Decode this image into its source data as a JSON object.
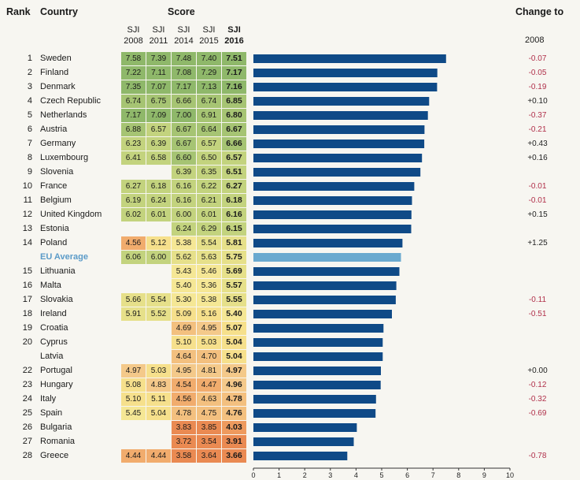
{
  "headers": {
    "rank": "Rank",
    "country": "Country",
    "score": "Score",
    "change": "Change to",
    "change_year": "2008",
    "cols": [
      {
        "l1": "SJI",
        "l2": "2008"
      },
      {
        "l1": "SJI",
        "l2": "2011"
      },
      {
        "l1": "SJI",
        "l2": "2014"
      },
      {
        "l1": "SJI",
        "l2": "2015"
      },
      {
        "l1": "SJI",
        "l2": "2016"
      }
    ]
  },
  "colors": {
    "bar": "#0f4a87",
    "eu_bar": "#6aa9cf",
    "eu_text": "#5b9bc8",
    "negative": "#b0304a"
  },
  "chart_data": {
    "type": "bar",
    "orientation": "horizontal",
    "xlim": [
      0,
      10
    ],
    "xticks": [
      "0",
      "1",
      "2",
      "3",
      "4",
      "5",
      "6",
      "7",
      "8",
      "9",
      "10"
    ],
    "rows": [
      {
        "rank": "1",
        "country": "Sweden",
        "scores": [
          "7.58",
          "7.39",
          "7.48",
          "7.40",
          "7.51"
        ],
        "value": 7.51,
        "change": "-0.07"
      },
      {
        "rank": "2",
        "country": "Finland",
        "scores": [
          "7.22",
          "7.11",
          "7.08",
          "7.29",
          "7.17"
        ],
        "value": 7.17,
        "change": "-0.05"
      },
      {
        "rank": "3",
        "country": "Denmark",
        "scores": [
          "7.35",
          "7.07",
          "7.17",
          "7.13",
          "7.16"
        ],
        "value": 7.16,
        "change": "-0.19"
      },
      {
        "rank": "4",
        "country": "Czech Republic",
        "scores": [
          "6.74",
          "6.75",
          "6.66",
          "6.74",
          "6.85"
        ],
        "value": 6.85,
        "change": "+0.10"
      },
      {
        "rank": "5",
        "country": "Netherlands",
        "scores": [
          "7.17",
          "7.09",
          "7.00",
          "6.91",
          "6.80"
        ],
        "value": 6.8,
        "change": "-0.37"
      },
      {
        "rank": "6",
        "country": "Austria",
        "scores": [
          "6.88",
          "6.57",
          "6.67",
          "6.64",
          "6.67"
        ],
        "value": 6.67,
        "change": "-0.21"
      },
      {
        "rank": "7",
        "country": "Germany",
        "scores": [
          "6.23",
          "6.39",
          "6.67",
          "6.57",
          "6.66"
        ],
        "value": 6.66,
        "change": "+0.43"
      },
      {
        "rank": "8",
        "country": "Luxembourg",
        "scores": [
          "6.41",
          "6.58",
          "6.60",
          "6.50",
          "6.57"
        ],
        "value": 6.57,
        "change": "+0.16"
      },
      {
        "rank": "9",
        "country": "Slovenia",
        "scores": [
          "",
          "",
          "6.39",
          "6.35",
          "6.51"
        ],
        "value": 6.51,
        "change": ""
      },
      {
        "rank": "10",
        "country": "France",
        "scores": [
          "6.27",
          "6.18",
          "6.16",
          "6.22",
          "6.27"
        ],
        "value": 6.27,
        "change": "-0.01"
      },
      {
        "rank": "11",
        "country": "Belgium",
        "scores": [
          "6.19",
          "6.24",
          "6.16",
          "6.21",
          "6.18"
        ],
        "value": 6.18,
        "change": "-0.01"
      },
      {
        "rank": "12",
        "country": "United Kingdom",
        "scores": [
          "6.02",
          "6.01",
          "6.00",
          "6.01",
          "6.16"
        ],
        "value": 6.16,
        "change": "+0.15"
      },
      {
        "rank": "13",
        "country": "Estonia",
        "scores": [
          "",
          "",
          "6.24",
          "6.29",
          "6.15"
        ],
        "value": 6.15,
        "change": ""
      },
      {
        "rank": "14",
        "country": "Poland",
        "scores": [
          "4.56",
          "5.12",
          "5.38",
          "5.54",
          "5.81"
        ],
        "value": 5.81,
        "change": "+1.25"
      },
      {
        "rank": "",
        "country": "EU Average",
        "scores": [
          "6.06",
          "6.00",
          "5.62",
          "5.63",
          "5.75"
        ],
        "value": 5.75,
        "change": "",
        "eu": true
      },
      {
        "rank": "15",
        "country": "Lithuania",
        "scores": [
          "",
          "",
          "5.43",
          "5.46",
          "5.69"
        ],
        "value": 5.69,
        "change": ""
      },
      {
        "rank": "16",
        "country": "Malta",
        "scores": [
          "",
          "",
          "5.40",
          "5.36",
          "5.57"
        ],
        "value": 5.57,
        "change": ""
      },
      {
        "rank": "17",
        "country": "Slovakia",
        "scores": [
          "5.66",
          "5.54",
          "5.30",
          "5.38",
          "5.55"
        ],
        "value": 5.55,
        "change": "-0.11"
      },
      {
        "rank": "18",
        "country": "Ireland",
        "scores": [
          "5.91",
          "5.52",
          "5.09",
          "5.16",
          "5.40"
        ],
        "value": 5.4,
        "change": "-0.51"
      },
      {
        "rank": "19",
        "country": "Croatia",
        "scores": [
          "",
          "",
          "4.69",
          "4.95",
          "5.07"
        ],
        "value": 5.07,
        "change": ""
      },
      {
        "rank": "20",
        "country": "Cyprus",
        "scores": [
          "",
          "",
          "5.10",
          "5.03",
          "5.04"
        ],
        "value": 5.04,
        "change": ""
      },
      {
        "rank": "",
        "country": "Latvia",
        "scores": [
          "",
          "",
          "4.64",
          "4.70",
          "5.04"
        ],
        "value": 5.04,
        "change": ""
      },
      {
        "rank": "22",
        "country": "Portugal",
        "scores": [
          "4.97",
          "5.03",
          "4.95",
          "4.81",
          "4.97"
        ],
        "value": 4.97,
        "change": "+0.00"
      },
      {
        "rank": "23",
        "country": "Hungary",
        "scores": [
          "5.08",
          "4.83",
          "4.54",
          "4.47",
          "4.96"
        ],
        "value": 4.96,
        "change": "-0.12"
      },
      {
        "rank": "24",
        "country": "Italy",
        "scores": [
          "5.10",
          "5.11",
          "4.56",
          "4.63",
          "4.78"
        ],
        "value": 4.78,
        "change": "-0.32"
      },
      {
        "rank": "25",
        "country": "Spain",
        "scores": [
          "5.45",
          "5.04",
          "4.78",
          "4.75",
          "4.76"
        ],
        "value": 4.76,
        "change": "-0.69"
      },
      {
        "rank": "26",
        "country": "Bulgaria",
        "scores": [
          "",
          "",
          "3.83",
          "3.85",
          "4.03"
        ],
        "value": 4.03,
        "change": ""
      },
      {
        "rank": "27",
        "country": "Romania",
        "scores": [
          "",
          "",
          "3.72",
          "3.54",
          "3.91"
        ],
        "value": 3.91,
        "change": ""
      },
      {
        "rank": "28",
        "country": "Greece",
        "scores": [
          "4.44",
          "4.44",
          "3.58",
          "3.64",
          "3.66"
        ],
        "value": 3.66,
        "change": "-0.78"
      }
    ]
  }
}
